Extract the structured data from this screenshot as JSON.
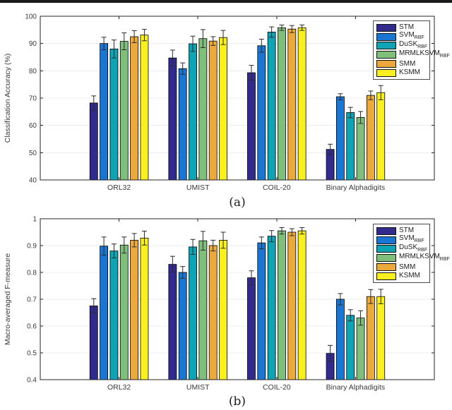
{
  "figure": {
    "top_border_color": "#1b1b1b",
    "background": "#ffffff"
  },
  "series": [
    {
      "name": "STM",
      "label": "STM",
      "sub": "",
      "color": "#322B8D"
    },
    {
      "name": "SVM_RBF",
      "label": "SVM",
      "sub": "RBF",
      "color": "#1B75D3"
    },
    {
      "name": "DuSK_RBF",
      "label": "DuSK",
      "sub": "RBF",
      "color": "#0EA4B6"
    },
    {
      "name": "MRMLKSVM_RBF",
      "label": "MRMLKSVM",
      "sub": "RBF",
      "color": "#80BE7C"
    },
    {
      "name": "SMM",
      "label": "SMM",
      "sub": "",
      "color": "#EDAA3C"
    },
    {
      "name": "KSMM",
      "label": "KSMM",
      "sub": "",
      "color": "#FAF020"
    }
  ],
  "categories": [
    "ORL32",
    "UMIST",
    "COIL-20",
    "Binary Alphadigits"
  ],
  "chart_data": [
    {
      "type": "bar",
      "panel": "a",
      "caption": "(a)",
      "title": "",
      "xlabel": "",
      "ylabel": "Classification Accuracy (%)",
      "ylim": [
        40,
        100
      ],
      "ytick_values": [
        40,
        50,
        60,
        70,
        80,
        90,
        100
      ],
      "ytick_labels": [
        "40",
        "50",
        "60",
        "70",
        "80",
        "90",
        "100"
      ],
      "grid": "horizontal",
      "legend_position": "upper-right-inside",
      "categories": [
        "ORL32",
        "UMIST",
        "COIL-20",
        "Binary Alphadigits"
      ],
      "series": [
        {
          "name": "STM",
          "values": [
            68.2,
            84.7,
            79.3,
            51.2
          ],
          "errors": [
            2.6,
            2.9,
            2.7,
            1.9
          ]
        },
        {
          "name": "SVM_RBF",
          "values": [
            90.0,
            80.8,
            89.2,
            70.5
          ],
          "errors": [
            2.3,
            2.1,
            2.4,
            1.1
          ]
        },
        {
          "name": "DuSK_RBF",
          "values": [
            88.0,
            89.9,
            94.2,
            64.7
          ],
          "errors": [
            3.3,
            2.8,
            1.9,
            1.9
          ]
        },
        {
          "name": "MRMLKSVM_RBF",
          "values": [
            90.8,
            91.8,
            95.8,
            62.9
          ],
          "errors": [
            3.1,
            3.3,
            1.0,
            2.2
          ]
        },
        {
          "name": "SMM",
          "values": [
            92.5,
            90.9,
            95.3,
            71.0
          ],
          "errors": [
            2.2,
            1.6,
            1.3,
            1.6
          ]
        },
        {
          "name": "KSMM",
          "values": [
            93.1,
            92.2,
            95.8,
            72.0
          ],
          "errors": [
            2.1,
            2.6,
            1.0,
            2.6
          ]
        }
      ]
    },
    {
      "type": "bar",
      "panel": "b",
      "caption": "(b)",
      "title": "",
      "xlabel": "",
      "ylabel": "Macro-averaged F-measure",
      "ylim": [
        0.4,
        1
      ],
      "ytick_values": [
        0.4,
        0.5,
        0.6,
        0.7,
        0.8,
        0.9,
        1
      ],
      "ytick_labels": [
        "0.4",
        "0.5",
        "0.6",
        "0.7",
        "0.8",
        "0.9",
        "1"
      ],
      "grid": "horizontal",
      "legend_position": "upper-right-inside",
      "categories": [
        "ORL32",
        "UMIST",
        "COIL-20",
        "Binary Alphadigits"
      ],
      "series": [
        {
          "name": "STM",
          "values": [
            0.675,
            0.83,
            0.78,
            0.498
          ],
          "errors": [
            0.027,
            0.03,
            0.026,
            0.03
          ]
        },
        {
          "name": "SVM_RBF",
          "values": [
            0.898,
            0.8,
            0.91,
            0.7
          ],
          "errors": [
            0.034,
            0.022,
            0.022,
            0.021
          ]
        },
        {
          "name": "DuSK_RBF",
          "values": [
            0.88,
            0.895,
            0.935,
            0.64
          ],
          "errors": [
            0.026,
            0.028,
            0.021,
            0.021
          ]
        },
        {
          "name": "MRMLKSVM_RBF",
          "values": [
            0.902,
            0.918,
            0.955,
            0.63
          ],
          "errors": [
            0.03,
            0.035,
            0.012,
            0.027
          ]
        },
        {
          "name": "SMM",
          "values": [
            0.92,
            0.9,
            0.95,
            0.71
          ],
          "errors": [
            0.025,
            0.02,
            0.013,
            0.026
          ]
        },
        {
          "name": "KSMM",
          "values": [
            0.928,
            0.92,
            0.955,
            0.71
          ],
          "errors": [
            0.026,
            0.03,
            0.012,
            0.027
          ]
        }
      ]
    }
  ],
  "style": {
    "axis_color": "#262626",
    "tick_label_color": "#3a3a3a",
    "grid_color": "#ececec",
    "errorbar_color": "#2b2b2b",
    "bar_edge_color": "#000000"
  }
}
